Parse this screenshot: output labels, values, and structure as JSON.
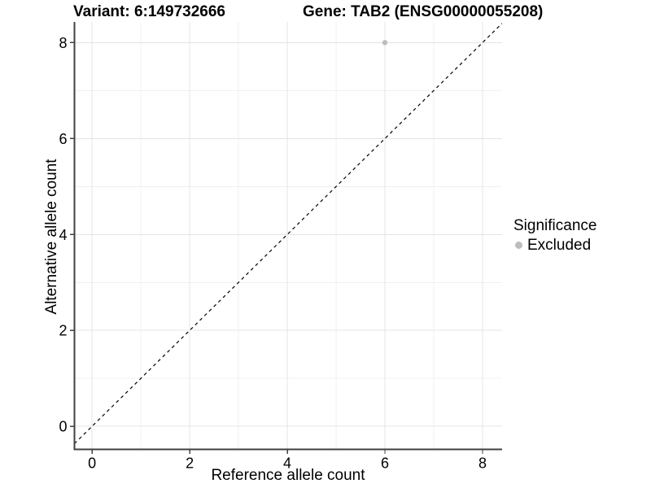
{
  "figure": {
    "title_variant": "Variant: 6:149732666",
    "title_gene": "Gene: TAB2 (ENSG00000055208)"
  },
  "legend": {
    "title": "Significance",
    "entries": [
      {
        "label": "Excluded",
        "color": "#bdbdbd"
      }
    ],
    "position": "right"
  },
  "colors": {
    "background": "#ffffff",
    "text": "#000000",
    "axis": "#404040",
    "grid_major": "#e4e4e4",
    "grid_minor": "#f0f0f0",
    "point": "#bdbdbd",
    "identity_line": "#000000"
  },
  "chart_data": {
    "type": "scatter",
    "title": "Variant: 6:149732666    Gene: TAB2 (ENSG00000055208)",
    "xlabel": "Reference allele count",
    "ylabel": "Alternative allele count",
    "xlim": [
      -0.36,
      8.4
    ],
    "ylim": [
      -0.48,
      8.43
    ],
    "xticks": [
      0,
      2,
      4,
      6,
      8
    ],
    "yticks": [
      0,
      2,
      4,
      6,
      8
    ],
    "xticks_minor": [
      1,
      3,
      5,
      7
    ],
    "yticks_minor": [
      1,
      3,
      5,
      7
    ],
    "grid": "major+minor",
    "legend_position": "right",
    "series": [
      {
        "name": "Excluded",
        "color": "#bdbdbd",
        "marker": "circle",
        "size": 3.2,
        "points": [
          [
            6,
            8
          ]
        ]
      }
    ],
    "annotations": [
      {
        "type": "abline",
        "slope": 1,
        "intercept": 0,
        "linestyle": "dashed",
        "color": "#000000"
      }
    ]
  }
}
